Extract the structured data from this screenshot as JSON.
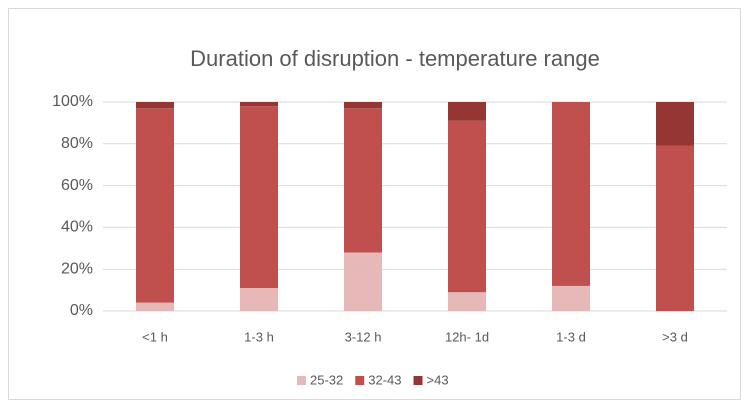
{
  "chart_data": {
    "type": "stacked_bar",
    "title": "Duration of disruption - temperature range",
    "categories": [
      "<1 h",
      "1-3 h",
      "3-12 h",
      "12h- 1d",
      "1-3 d",
      ">3 d"
    ],
    "series": [
      {
        "name": "25-32",
        "color": "#e6b8b7",
        "values": [
          4,
          11,
          28,
          9,
          12,
          0
        ]
      },
      {
        "name": "32-43",
        "color": "#c0504d",
        "values": [
          93,
          87,
          69,
          82,
          88,
          79
        ]
      },
      {
        "name": ">43",
        "color": "#963634",
        "values": [
          3,
          2,
          3,
          9,
          0,
          21
        ]
      }
    ],
    "ylim": [
      0,
      100
    ],
    "yticks": [
      {
        "value": 0,
        "label": "0%"
      },
      {
        "value": 20,
        "label": "20%"
      },
      {
        "value": 40,
        "label": "40%"
      },
      {
        "value": 60,
        "label": "60%"
      },
      {
        "value": 80,
        "label": "80%"
      },
      {
        "value": 100,
        "label": "100%"
      }
    ],
    "grid": true,
    "legend": "bottom"
  }
}
